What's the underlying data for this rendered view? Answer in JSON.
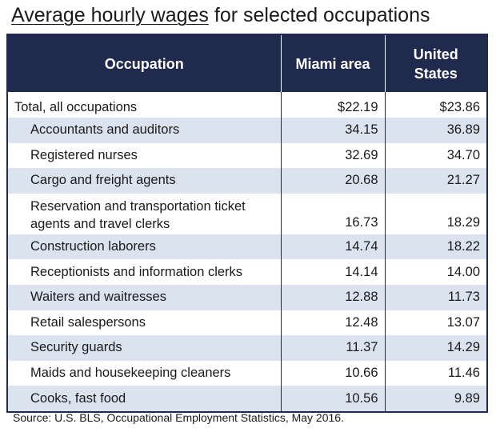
{
  "title": {
    "underlined": "Average hourly wages",
    "rest": " for selected occupations"
  },
  "table": {
    "headers": {
      "occupation": "Occupation",
      "miami": "Miami area",
      "us_line1": "United",
      "us_line2": "States"
    },
    "rows": [
      {
        "occupation": "Total, all occupations",
        "miami": "$22.19",
        "us": "$23.86"
      },
      {
        "occupation": "Accountants and auditors",
        "miami": "34.15",
        "us": "36.89"
      },
      {
        "occupation": "Registered nurses",
        "miami": "32.69",
        "us": "34.70"
      },
      {
        "occupation": "Cargo and freight agents",
        "miami": "20.68",
        "us": "21.27"
      },
      {
        "occupation_line1": "Reservation and transportation ticket",
        "occupation_line2": "agents and travel clerks",
        "miami": "16.73",
        "us": "18.29"
      },
      {
        "occupation": "Construction laborers",
        "miami": "14.74",
        "us": "18.22"
      },
      {
        "occupation": "Receptionists and information clerks",
        "miami": "14.14",
        "us": "14.00"
      },
      {
        "occupation": "Waiters and waitresses",
        "miami": "12.88",
        "us": "11.73"
      },
      {
        "occupation": "Retail salespersons",
        "miami": "12.48",
        "us": "13.07"
      },
      {
        "occupation": "Security guards",
        "miami": "11.37",
        "us": "14.29"
      },
      {
        "occupation": "Maids and housekeeping cleaners",
        "miami": "10.66",
        "us": "11.46"
      },
      {
        "occupation": "Cooks, fast food",
        "miami": "10.56",
        "us": "9.89"
      }
    ]
  },
  "source": "Source: U.S. BLS, Occupational Employment Statistics, May 2016.",
  "colors": {
    "header_bg": "#1f2a4e",
    "row_shade": "#dbe3ef"
  }
}
